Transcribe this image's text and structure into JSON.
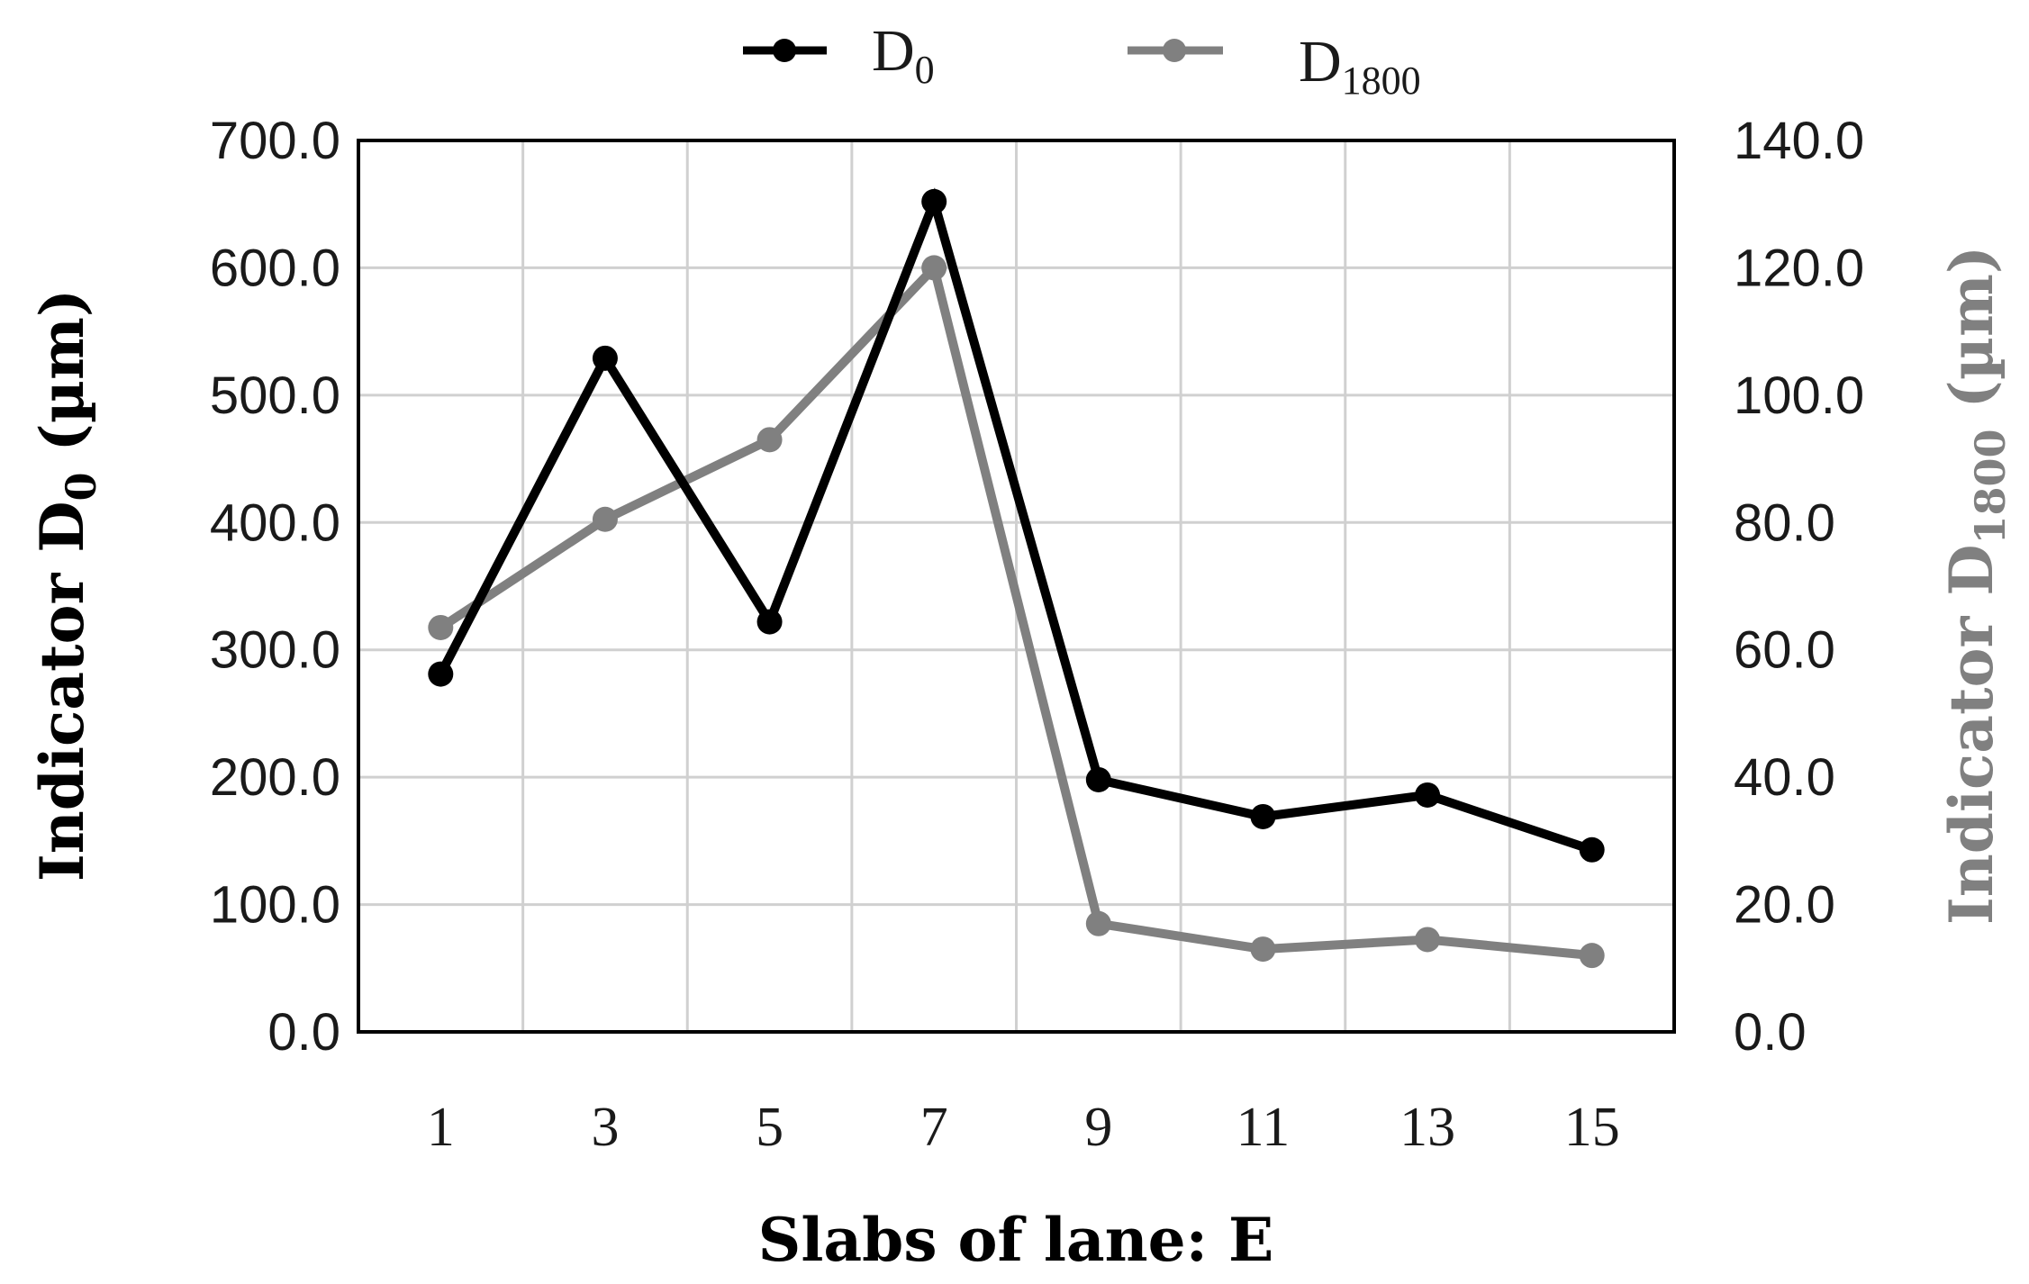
{
  "chart_data": {
    "type": "line",
    "title": "",
    "categories": [
      "1",
      "3",
      "5",
      "7",
      "9",
      "11",
      "13",
      "15"
    ],
    "series": [
      {
        "name": "D0",
        "legend_main": "D",
        "legend_sub": "0",
        "axis": "left",
        "color": "#000000",
        "values": [
          281,
          529,
          322,
          652,
          198,
          169,
          186,
          143
        ]
      },
      {
        "name": "D1800",
        "legend_main": "D",
        "legend_sub": "1800",
        "axis": "right",
        "color": "#808080",
        "values": [
          63.5,
          80.5,
          93.0,
          120.0,
          17.0,
          13.0,
          14.5,
          12.0
        ]
      }
    ],
    "y_left": {
      "range": [
        0,
        700
      ],
      "ticks": [
        "0.0",
        "100.0",
        "200.0",
        "300.0",
        "400.0",
        "500.0",
        "600.0",
        "700.0"
      ],
      "label_main": "Indicator D",
      "label_sub": "0",
      "label_unit": " (µm)"
    },
    "y_right": {
      "range": [
        0,
        140
      ],
      "ticks": [
        "0.0",
        "20.0",
        "40.0",
        "60.0",
        "80.0",
        "100.0",
        "120.0",
        "140.0"
      ],
      "label_main": "Indicator D",
      "label_sub": "1800",
      "label_unit": " (µm)"
    },
    "xlabel": "Slabs of lane: E",
    "grid": true,
    "legend_position": "top-center"
  },
  "colors": {
    "grid": "#d0d0d0",
    "frame": "#000000",
    "d0": "#000000",
    "d1800": "#808080"
  }
}
